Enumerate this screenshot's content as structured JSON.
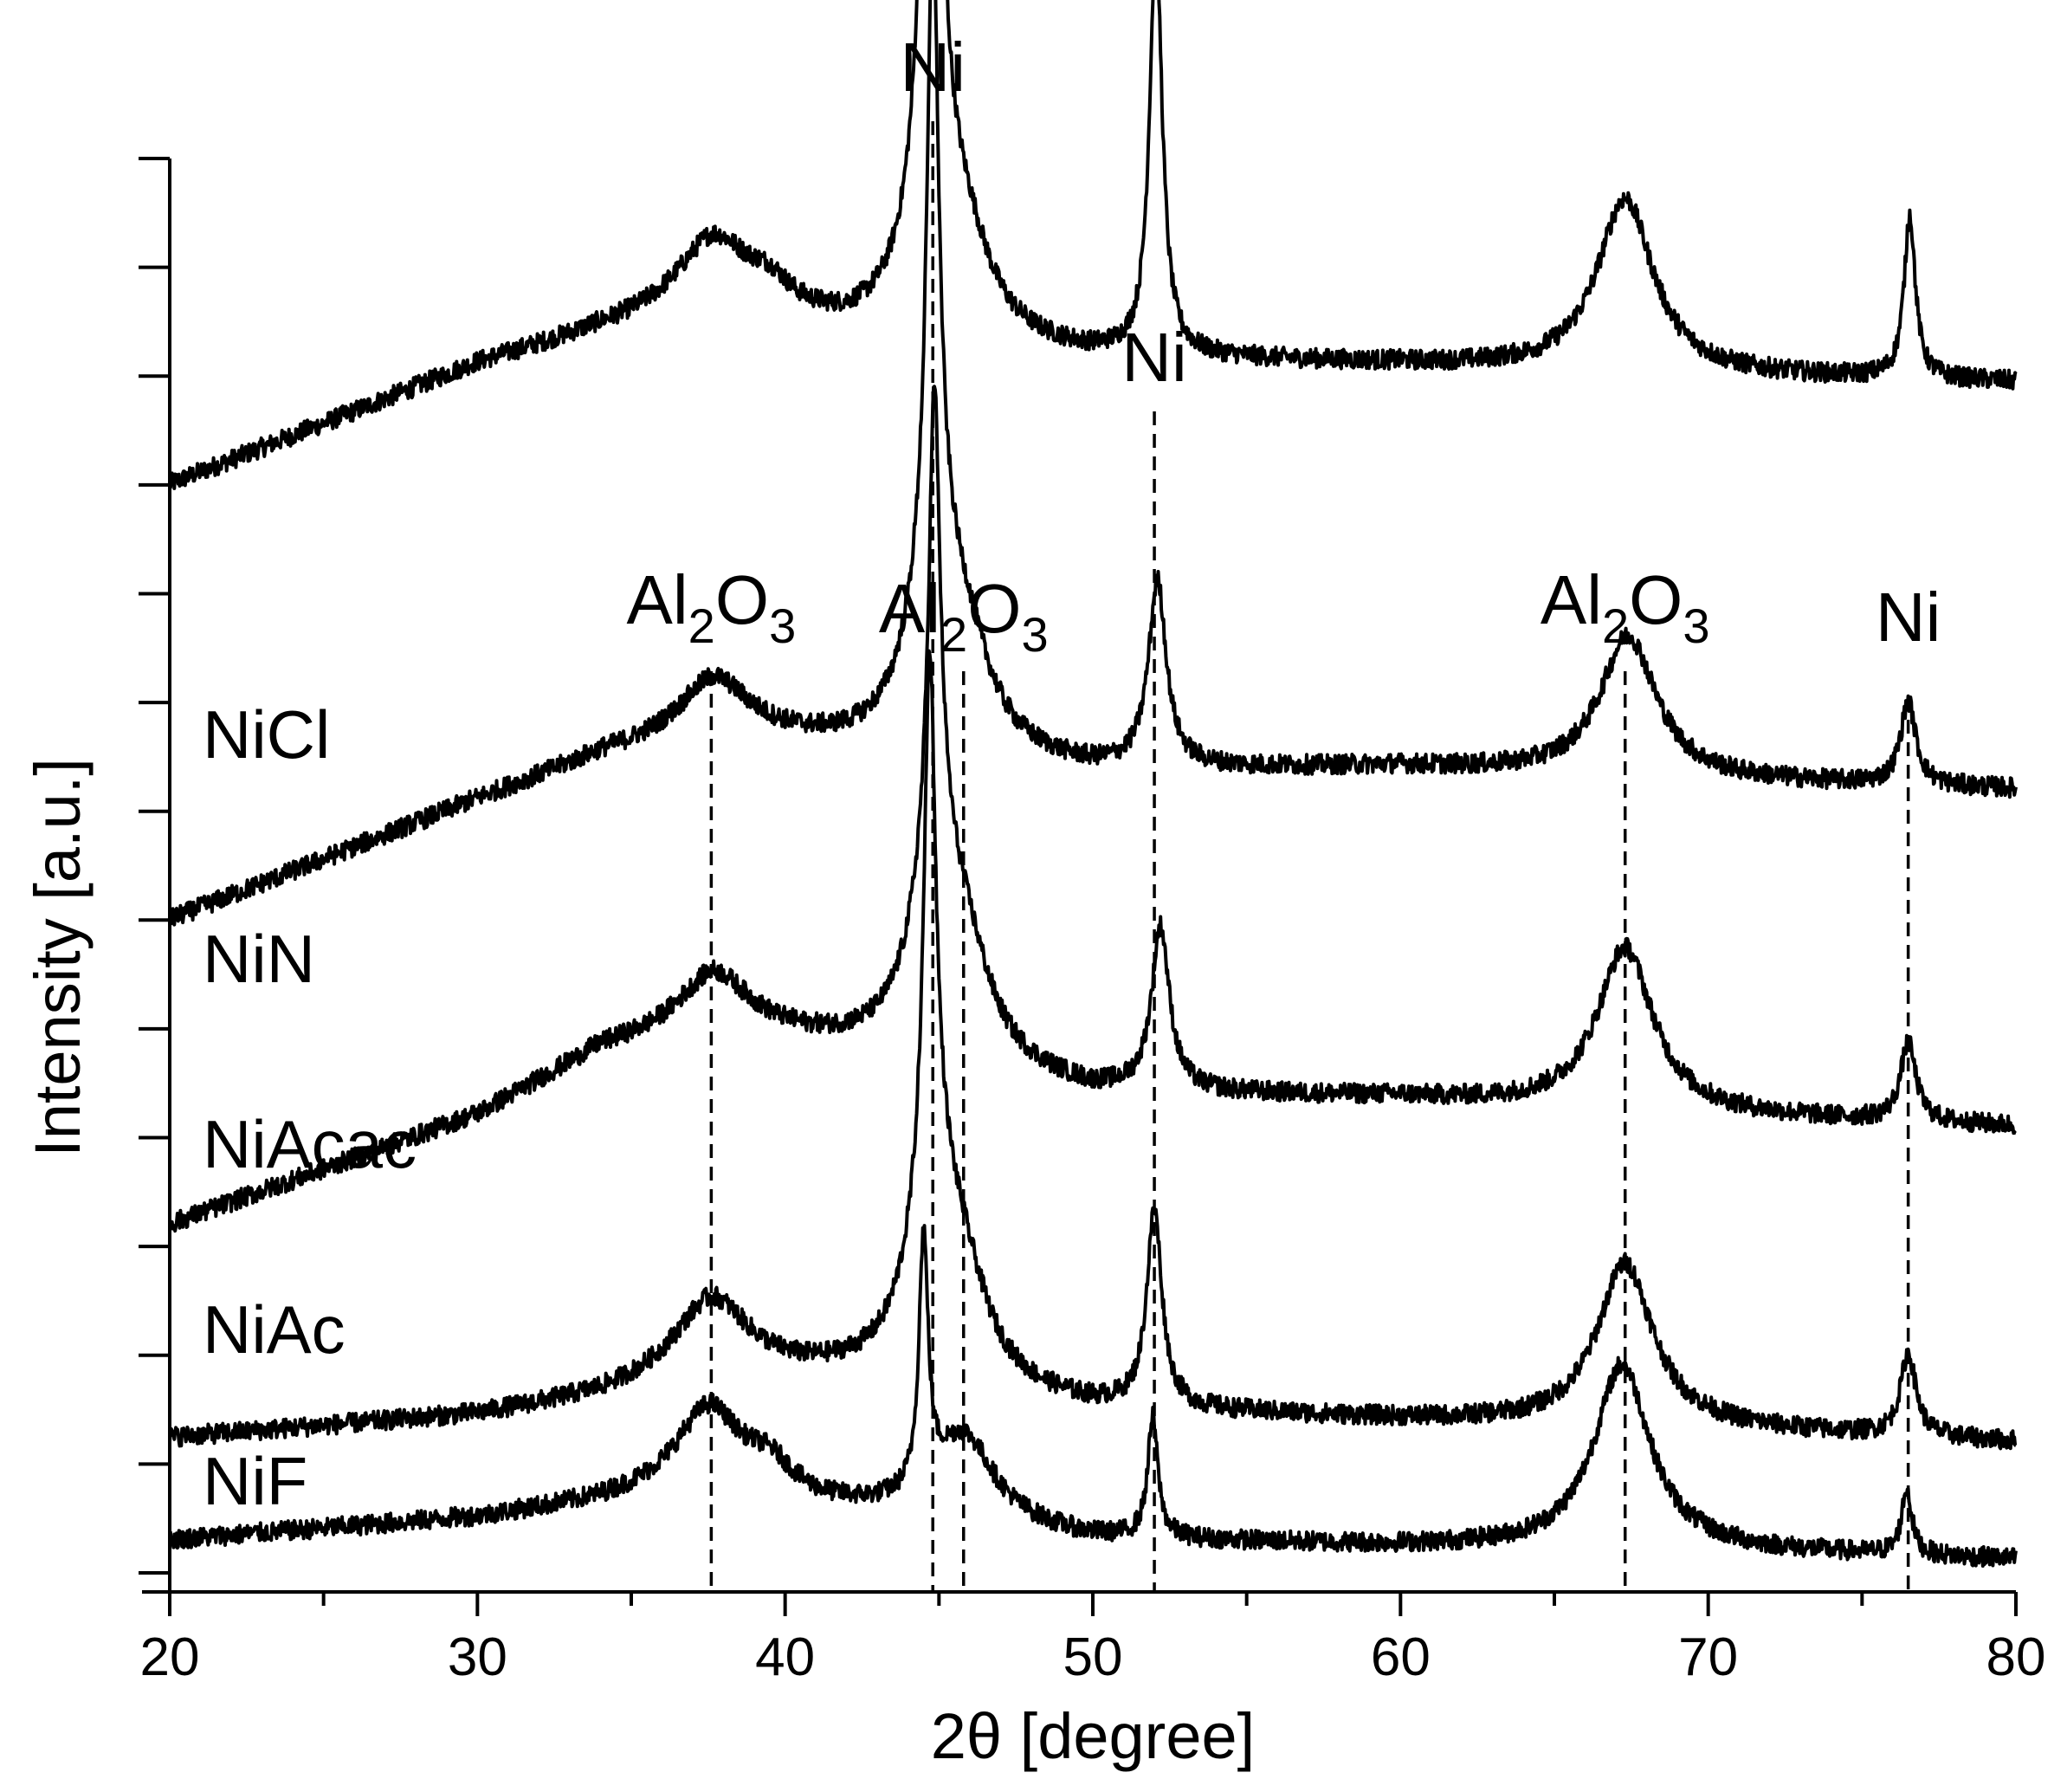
{
  "chart_data": {
    "type": "line",
    "xlabel": "2θ [degree]",
    "ylabel": "Intensity [a.u.]",
    "xlim": [
      20,
      80
    ],
    "x_ticks": [
      20,
      30,
      40,
      50,
      60,
      70,
      80
    ],
    "y_ticks_labeled": false,
    "grid": false,
    "legend": "none",
    "series_labels_placement": "left, above each trace",
    "peak_markers": [
      {
        "label": "Al",
        "sub1": "2",
        "mid": "O",
        "sub2": "3",
        "x": 37.6
      },
      {
        "label": "Ni",
        "x": 44.8
      },
      {
        "label": "Al",
        "sub1": "2",
        "mid": "O",
        "sub2": "3",
        "x": 45.8
      },
      {
        "label": "Ni",
        "x": 52.0
      },
      {
        "label": "Al",
        "sub1": "2",
        "mid": "O",
        "sub2": "3",
        "x": 67.3
      },
      {
        "label": "Ni",
        "x": 76.5
      }
    ],
    "series": [
      {
        "name": "NiCl",
        "baseline": [
          [
            20,
            5.0
          ],
          [
            30,
            5.55
          ],
          [
            34,
            5.7
          ],
          [
            37.6,
            5.8
          ],
          [
            42,
            5.68
          ],
          [
            50,
            5.58
          ],
          [
            60,
            5.55
          ],
          [
            70,
            5.5
          ],
          [
            80,
            5.47
          ]
        ],
        "peaks": [
          {
            "x": 37.7,
            "h": 0.32,
            "w": 1.5
          },
          {
            "x": 39.5,
            "h": 0.1,
            "w": 0.8
          },
          {
            "x": 44.75,
            "h": 4.9,
            "w": 0.22
          },
          {
            "x": 44.8,
            "h": 0.8,
            "w": 0.9
          },
          {
            "x": 45.9,
            "h": 0.3,
            "w": 1.0
          },
          {
            "x": 52.05,
            "h": 1.9,
            "w": 0.25
          },
          {
            "x": 67.3,
            "h": 0.8,
            "w": 1.1
          },
          {
            "x": 76.55,
            "h": 0.75,
            "w": 0.22
          }
        ]
      },
      {
        "name": "NiN",
        "baseline": [
          [
            20,
            3.0
          ],
          [
            30,
            3.55
          ],
          [
            34,
            3.75
          ],
          [
            37.6,
            3.85
          ],
          [
            42,
            3.78
          ],
          [
            50,
            3.68
          ],
          [
            60,
            3.7
          ],
          [
            70,
            3.64
          ],
          [
            80,
            3.6
          ]
        ],
        "peaks": [
          {
            "x": 37.7,
            "h": 0.25,
            "w": 1.4
          },
          {
            "x": 44.8,
            "h": 2.8,
            "w": 0.22
          },
          {
            "x": 44.85,
            "h": 0.9,
            "w": 0.9
          },
          {
            "x": 45.9,
            "h": 0.35,
            "w": 1.0
          },
          {
            "x": 52.1,
            "h": 0.85,
            "w": 0.35
          },
          {
            "x": 67.4,
            "h": 0.65,
            "w": 1.1
          },
          {
            "x": 76.5,
            "h": 0.38,
            "w": 0.3
          }
        ]
      },
      {
        "name": "NiAcac",
        "baseline": [
          [
            20,
            1.6
          ],
          [
            30,
            2.1
          ],
          [
            34,
            2.4
          ],
          [
            37.6,
            2.5
          ],
          [
            42,
            2.4
          ],
          [
            50,
            2.2
          ],
          [
            60,
            2.18
          ],
          [
            70,
            2.1
          ],
          [
            80,
            2.05
          ]
        ],
        "peaks": [
          {
            "x": 37.7,
            "h": 0.25,
            "w": 1.4
          },
          {
            "x": 44.85,
            "h": 2.05,
            "w": 0.22
          },
          {
            "x": 44.9,
            "h": 0.9,
            "w": 0.9
          },
          {
            "x": 45.9,
            "h": 0.35,
            "w": 1.0
          },
          {
            "x": 52.2,
            "h": 0.75,
            "w": 0.35
          },
          {
            "x": 67.3,
            "h": 0.75,
            "w": 1.1
          },
          {
            "x": 76.5,
            "h": 0.36,
            "w": 0.3
          }
        ]
      },
      {
        "name": "NiAc",
        "baseline": [
          [
            20,
            0.62
          ],
          [
            30,
            0.72
          ],
          [
            34,
            0.8
          ],
          [
            37.6,
            0.9
          ],
          [
            42,
            0.88
          ],
          [
            50,
            0.75
          ],
          [
            60,
            0.7
          ],
          [
            70,
            0.66
          ],
          [
            80,
            0.6
          ]
        ],
        "peaks": [
          {
            "x": 37.6,
            "h": 0.35,
            "w": 1.5
          },
          {
            "x": 44.7,
            "h": 2.35,
            "w": 0.22
          },
          {
            "x": 44.8,
            "h": 0.9,
            "w": 0.9
          },
          {
            "x": 45.8,
            "h": 0.35,
            "w": 1.0
          },
          {
            "x": 52.0,
            "h": 0.9,
            "w": 0.3
          },
          {
            "x": 67.3,
            "h": 0.75,
            "w": 1.1
          },
          {
            "x": 76.5,
            "h": 0.38,
            "w": 0.3
          }
        ]
      },
      {
        "name": "NiF",
        "baseline": [
          [
            20,
            0.15
          ],
          [
            30,
            0.25
          ],
          [
            34,
            0.32
          ],
          [
            37.6,
            0.4
          ],
          [
            41,
            0.3
          ],
          [
            50,
            0.15
          ],
          [
            60,
            0.12
          ],
          [
            70,
            0.1
          ],
          [
            80,
            0.06
          ]
        ],
        "peaks": [
          {
            "x": 37.5,
            "h": 0.35,
            "w": 1.3
          },
          {
            "x": 39.5,
            "h": 0.12,
            "w": 0.9
          },
          {
            "x": 44.5,
            "h": 1.15,
            "w": 0.18
          },
          {
            "x": 45.8,
            "h": 0.4,
            "w": 1.2
          },
          {
            "x": 51.95,
            "h": 0.55,
            "w": 0.2
          },
          {
            "x": 67.2,
            "h": 0.85,
            "w": 1.1
          },
          {
            "x": 76.45,
            "h": 0.3,
            "w": 0.2
          }
        ]
      }
    ]
  }
}
